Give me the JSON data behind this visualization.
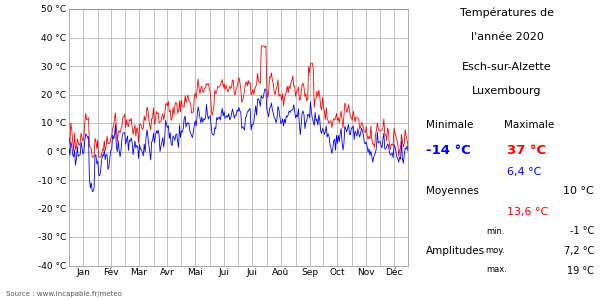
{
  "title_line1": "Températures de",
  "title_line2": "l'année 2020",
  "subtitle_line1": "Esch-sur-Alzette",
  "subtitle_line2": "Luxembourg",
  "xlabel_months": [
    "Jan",
    "Fév",
    "Mar",
    "Avr",
    "Mai",
    "Jui",
    "Jui",
    "Aoû",
    "Sep",
    "Oct",
    "Nov",
    "Déc"
  ],
  "ylim": [
    -40,
    50
  ],
  "yticks": [
    -40,
    -30,
    -20,
    -10,
    0,
    10,
    20,
    30,
    40,
    50
  ],
  "ytick_labels": [
    "-40 °C",
    "-30 °C",
    "-20 °C",
    "-10 °C",
    "0 °C",
    "10 °C",
    "20 °C",
    "30 °C",
    "40 °C",
    "50 °C"
  ],
  "color_blue": "#0000ff",
  "color_red": "#ff0000",
  "bg_color": "#ffffff",
  "grid_color": "#aaaaaa",
  "source_text": "Source : www.incapable.fr/meteo",
  "n_days": 366,
  "month_starts": [
    0,
    31,
    60,
    91,
    121,
    152,
    182,
    213,
    244,
    274,
    305,
    335,
    366
  ],
  "month_mids": [
    15,
    45,
    75,
    106,
    136,
    167,
    197,
    228,
    259,
    289,
    320,
    350
  ],
  "season_min_base": [
    1,
    0,
    2,
    5,
    9,
    12,
    14,
    14,
    11,
    7,
    3,
    1
  ],
  "season_max_base": [
    5,
    6,
    10,
    14,
    19,
    22,
    24,
    24,
    20,
    14,
    8,
    5
  ]
}
